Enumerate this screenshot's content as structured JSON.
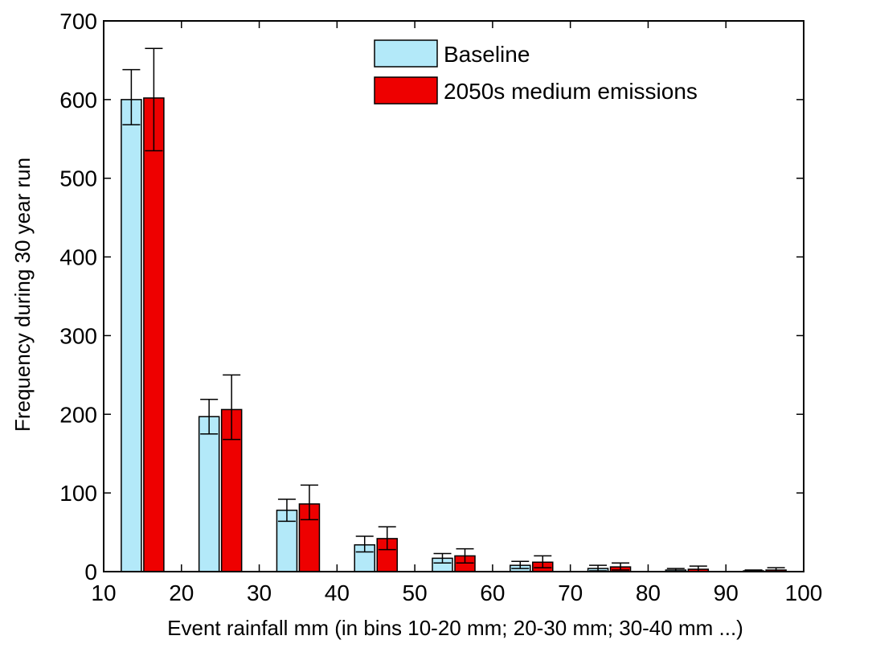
{
  "chart_data": {
    "type": "bar",
    "xlabel": "Event rainfall mm (in bins 10-20 mm; 20-30 mm; 30-40 mm ...)",
    "ylabel": "Frequency during 30 year run",
    "xlim": [
      10,
      100
    ],
    "ylim": [
      0,
      700
    ],
    "x_ticks": [
      10,
      20,
      30,
      40,
      50,
      60,
      70,
      80,
      90,
      100
    ],
    "y_ticks": [
      0,
      100,
      200,
      300,
      400,
      500,
      600,
      700
    ],
    "x": [
      15,
      25,
      35,
      45,
      55,
      65,
      75,
      85,
      95
    ],
    "grid": false,
    "legend_position": "top-right",
    "series": [
      {
        "name": "Baseline",
        "color": "#b3e9f9",
        "values": [
          600,
          197,
          78,
          34,
          17,
          8,
          4,
          2,
          1
        ],
        "error_low": [
          568,
          175,
          64,
          25,
          11,
          4,
          1,
          0,
          0
        ],
        "error_high": [
          638,
          219,
          92,
          45,
          23,
          13,
          8,
          4,
          2
        ]
      },
      {
        "name": "2050s medium emissions",
        "color": "#ee0000",
        "values": [
          602,
          206,
          86,
          42,
          20,
          12,
          6,
          3,
          2
        ],
        "error_low": [
          535,
          168,
          66,
          28,
          11,
          5,
          2,
          0,
          0
        ],
        "error_high": [
          665,
          250,
          110,
          57,
          29,
          20,
          11,
          7,
          5
        ]
      }
    ]
  }
}
